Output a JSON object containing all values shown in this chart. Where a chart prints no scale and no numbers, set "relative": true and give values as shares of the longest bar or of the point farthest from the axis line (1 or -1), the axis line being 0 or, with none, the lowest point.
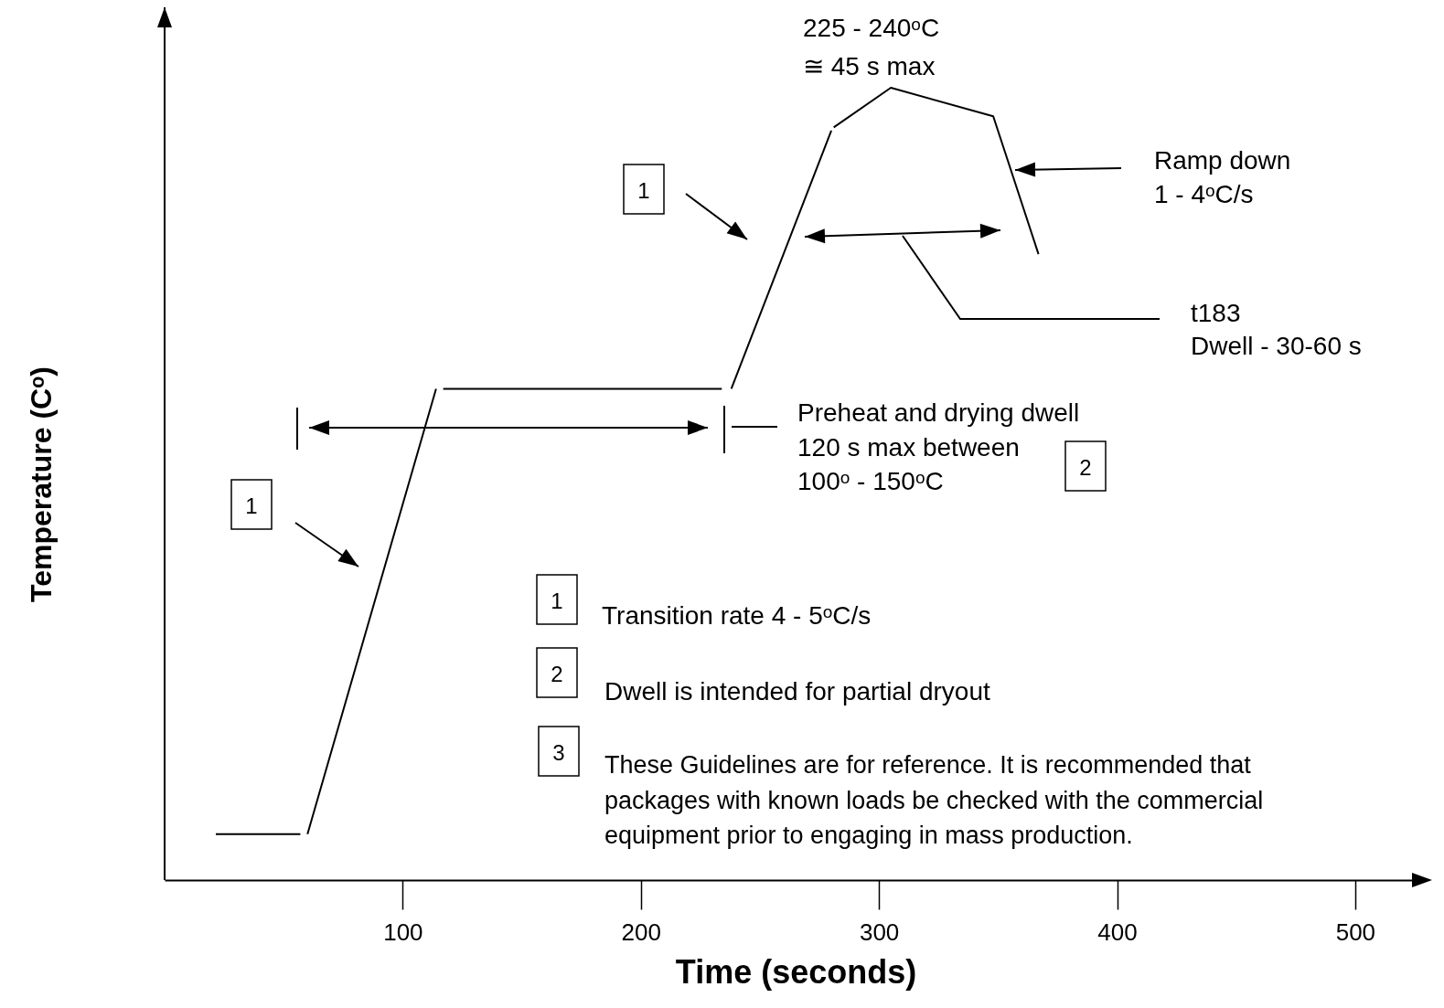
{
  "chart_data": {
    "type": "line",
    "relative": true,
    "xlabel": "Time (seconds)",
    "ylabel": "Temperature (Cᵒ)",
    "xlim": [
      0,
      530
    ],
    "xticks": [
      100,
      200,
      300,
      400,
      500
    ],
    "series": [
      {
        "color": "#000000",
        "x": [
          21.5,
          57,
          58.5,
          60,
          114,
          115.5,
          117,
          234,
          236,
          238,
          280,
          280.5,
          281,
          305,
          348,
          367
        ],
        "values": [
          0.058,
          0.058,
          null,
          0.058,
          0.62,
          null,
          0.62,
          0.62,
          null,
          0.62,
          0.946,
          null,
          0.95,
          1,
          0.964,
          0.79
        ]
      }
    ],
    "annotations": [
      "225 - 240ᵒC",
      "≅ 45 s max",
      "Ramp down",
      "1 - 4ᵒC/s",
      "t183",
      "Dwell - 30-60 s",
      "Preheat and drying dwell",
      "120 s max between",
      "100ᵒ - 150ᵒC",
      "1",
      "1",
      "2",
      "1",
      "Transition rate 4 - 5ᵒC/s",
      "2",
      "Dwell is intended for partial dryout",
      "3",
      "These Guidelines are for reference. It is recommended that",
      "packages with known loads be checked with the commercial",
      "equipment prior to engaging in mass production."
    ]
  }
}
